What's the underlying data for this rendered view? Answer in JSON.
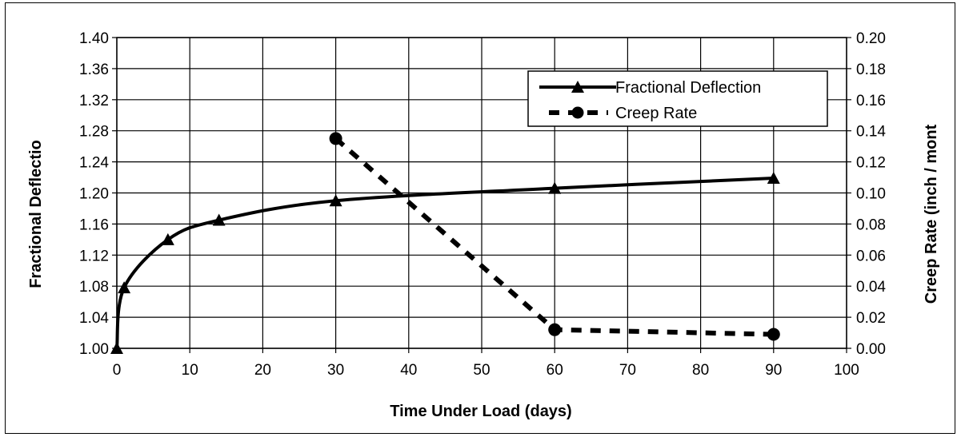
{
  "chart_data": {
    "type": "line",
    "xlabel": "Time Under Load (days)",
    "ylabel": "Fractional  Deflectio",
    "y2label": "Creep Rate (inch / mont",
    "xlim": [
      0,
      100
    ],
    "ylim": [
      1.0,
      1.4
    ],
    "y2lim": [
      0.0,
      0.2
    ],
    "x_ticks": [
      0,
      10,
      20,
      30,
      40,
      50,
      60,
      70,
      80,
      90,
      100
    ],
    "y_ticks": [
      "1.00",
      "1.04",
      "1.08",
      "1.12",
      "1.16",
      "1.20",
      "1.24",
      "1.28",
      "1.32",
      "1.36",
      "1.40"
    ],
    "y2_ticks": [
      "0.00",
      "0.02",
      "0.04",
      "0.06",
      "0.08",
      "0.10",
      "0.12",
      "0.14",
      "0.16",
      "0.18",
      "0.20"
    ],
    "grid": true,
    "legend_position": "top-right",
    "series": [
      {
        "name": "Fractional Deflection",
        "axis": "left",
        "style": "solid",
        "marker": "triangle",
        "x": [
          0,
          1,
          7,
          14,
          30,
          60,
          90
        ],
        "y": [
          1.0,
          1.078,
          1.14,
          1.165,
          1.19,
          1.206,
          1.219
        ]
      },
      {
        "name": "Creep Rate",
        "axis": "right",
        "style": "dashed",
        "marker": "circle",
        "x": [
          30,
          60,
          90
        ],
        "y": [
          0.135,
          0.012,
          0.009
        ]
      }
    ]
  }
}
